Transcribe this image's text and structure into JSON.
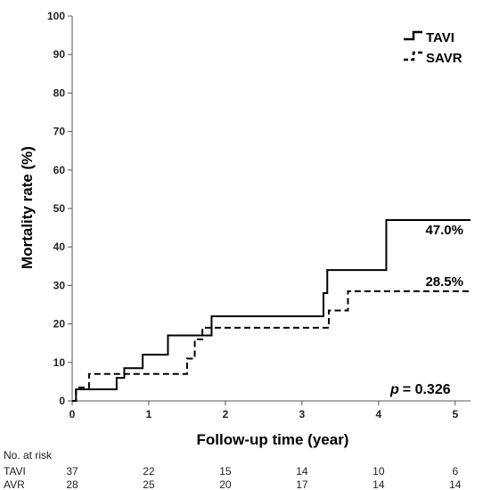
{
  "chart_data": {
    "type": "line",
    "step": true,
    "xlabel": "Follow-up time (year)",
    "ylabel": "Mortality rate (%)",
    "xlim": [
      0,
      5.2
    ],
    "ylim": [
      0,
      100
    ],
    "xticks": [
      0,
      1,
      2,
      3,
      4,
      5
    ],
    "yticks": [
      0,
      10,
      20,
      30,
      40,
      50,
      60,
      70,
      80,
      90,
      100
    ],
    "grid": false,
    "legend_position": "top-right",
    "series": [
      {
        "name": "TAVI",
        "line_style": "solid",
        "color": "#000000",
        "end_label": "47.0%",
        "x": [
          0,
          0.05,
          0.58,
          0.68,
          0.92,
          1.25,
          1.75,
          1.82,
          3.28,
          3.33,
          4.0,
          4.1,
          5.2
        ],
        "y": [
          0,
          3,
          6,
          8.5,
          12,
          17,
          17,
          22,
          28,
          34,
          34,
          47,
          47
        ]
      },
      {
        "name": "SAVR",
        "line_style": "dashed",
        "color": "#000000",
        "end_label": "28.5%",
        "x": [
          0,
          0.05,
          0.22,
          0.68,
          1.5,
          1.6,
          1.7,
          3.3,
          3.35,
          3.6,
          5.2
        ],
        "y": [
          0,
          3.5,
          7,
          7,
          11,
          16,
          19,
          19,
          23.5,
          28.5,
          28.5
        ]
      }
    ],
    "annotation": "= 0.326",
    "annotation_var": "p",
    "risk_table": {
      "title": "No. at risk",
      "times": [
        0,
        1,
        2,
        3,
        4,
        5
      ],
      "rows": [
        {
          "label": "TAVI",
          "values": [
            37,
            22,
            15,
            14,
            10,
            6
          ]
        },
        {
          "label": "AVR",
          "values": [
            28,
            25,
            20,
            17,
            14,
            14
          ]
        }
      ]
    }
  }
}
